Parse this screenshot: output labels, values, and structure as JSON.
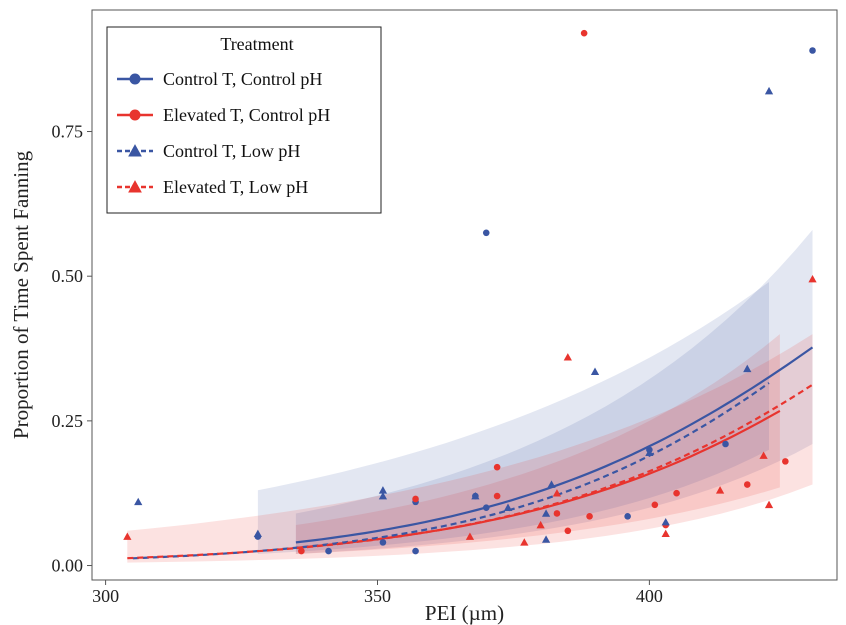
{
  "chart_data": {
    "type": "scatter",
    "title": "",
    "xlabel": "PEI (µm)",
    "ylabel": "Proportion of Time Spent Fanning",
    "xlim": [
      297.5,
      434.5
    ],
    "ylim": [
      -0.025,
      0.96
    ],
    "xticks": [
      300,
      350,
      400
    ],
    "yticks": [
      0.0,
      0.25,
      0.5,
      0.75
    ],
    "ytick_labels": [
      "0.00",
      "0.25",
      "0.50",
      "0.75"
    ],
    "grid": false,
    "legend": {
      "title": "Treatment",
      "position": "top-left"
    },
    "series": [
      {
        "name": "Control T, Control pH",
        "color": "#3a56a3",
        "marker": "circle",
        "line_style": "solid",
        "points": [
          [
            328,
            0.05
          ],
          [
            341,
            0.025
          ],
          [
            351,
            0.04
          ],
          [
            357,
            0.025
          ],
          [
            357,
            0.11
          ],
          [
            368,
            0.12
          ],
          [
            370,
            0.575
          ],
          [
            370,
            0.1
          ],
          [
            396,
            0.085
          ],
          [
            400,
            0.2
          ],
          [
            414,
            0.21
          ],
          [
            430,
            0.89
          ]
        ],
        "fit": {
          "a": -12.62,
          "b": 0.02818,
          "x_range": [
            335,
            430
          ]
        },
        "ci": {
          "x": [
            335,
            430
          ],
          "lower": [
            0.02,
            0.21
          ],
          "upper": [
            0.09,
            0.58
          ]
        }
      },
      {
        "name": "Elevated T, Control pH",
        "color": "#e8342e",
        "marker": "circle",
        "line_style": "solid",
        "points": [
          [
            336,
            0.025
          ],
          [
            357,
            0.115
          ],
          [
            372,
            0.12
          ],
          [
            372,
            0.17
          ],
          [
            383,
            0.09
          ],
          [
            385,
            0.06
          ],
          [
            388,
            0.92
          ],
          [
            389,
            0.085
          ],
          [
            401,
            0.105
          ],
          [
            403,
            0.07
          ],
          [
            405,
            0.125
          ],
          [
            418,
            0.14
          ],
          [
            425,
            0.18
          ]
        ],
        "fit": {
          "a": -12.66,
          "b": 0.02748,
          "x_range": [
            335,
            424
          ]
        },
        "ci": {
          "x": [
            335,
            424
          ],
          "lower": [
            0.02,
            0.135
          ],
          "upper": [
            0.07,
            0.4
          ]
        }
      },
      {
        "name": "Control T, Low pH",
        "color": "#3a56a3",
        "marker": "triangle",
        "line_style": "dashed",
        "points": [
          [
            306,
            0.11
          ],
          [
            328,
            0.055
          ],
          [
            351,
            0.13
          ],
          [
            351,
            0.12
          ],
          [
            368,
            0.12
          ],
          [
            374,
            0.1
          ],
          [
            381,
            0.045
          ],
          [
            381,
            0.09
          ],
          [
            382,
            0.14
          ],
          [
            390,
            0.335
          ],
          [
            400,
            0.195
          ],
          [
            403,
            0.075
          ],
          [
            418,
            0.34
          ],
          [
            422,
            0.82
          ]
        ],
        "fit": {
          "a": -13.76,
          "b": 0.03077,
          "x_range": [
            305,
            422
          ]
        },
        "ci": {
          "x": [
            328,
            422
          ],
          "lower": [
            0.02,
            0.2
          ],
          "upper": [
            0.13,
            0.49
          ]
        }
      },
      {
        "name": "Elevated T, Low pH",
        "color": "#e8342e",
        "marker": "triangle",
        "line_style": "dashed",
        "points": [
          [
            304,
            0.05
          ],
          [
            367,
            0.05
          ],
          [
            377,
            0.04
          ],
          [
            380,
            0.07
          ],
          [
            383,
            0.125
          ],
          [
            385,
            0.36
          ],
          [
            403,
            0.055
          ],
          [
            413,
            0.13
          ],
          [
            421,
            0.19
          ],
          [
            422,
            0.105
          ],
          [
            430,
            0.495
          ]
        ],
        "fit": {
          "a": -12.94,
          "b": 0.02826,
          "x_range": [
            304,
            430
          ]
        },
        "ci": {
          "x": [
            304,
            430
          ],
          "lower": [
            0.005,
            0.14
          ],
          "upper": [
            0.06,
            0.4
          ]
        }
      }
    ]
  }
}
